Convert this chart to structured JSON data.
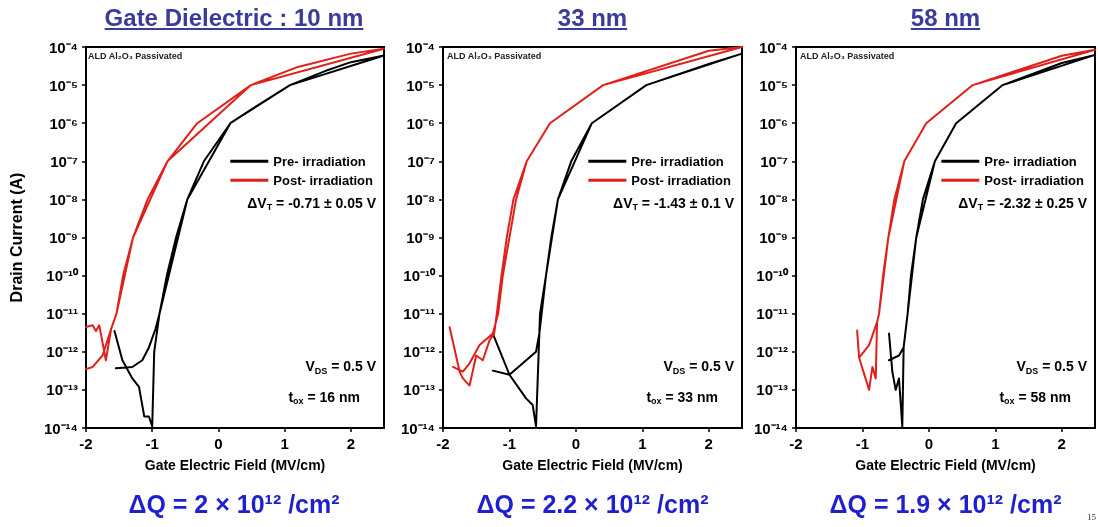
{
  "chart_data": [
    {
      "type": "line",
      "title": "Gate Dielectric : 10 nm",
      "xlabel": "Gate Electric Field (MV/cm)",
      "ylabel": "Drain Current (A)",
      "log": true,
      "grid": false,
      "legend": "right",
      "xlim": [
        -2,
        2.5
      ],
      "ylim": [
        1e-14,
        0.0001
      ],
      "xticks": [
        -2,
        -1,
        0,
        1,
        2
      ],
      "yticks": [
        {
          "value": 0.0001,
          "label": "10⁻⁴"
        },
        {
          "value": 1e-05,
          "label": "10⁻⁵"
        },
        {
          "value": 1e-06,
          "label": "10⁻⁶"
        },
        {
          "value": 1e-07,
          "label": "10⁻⁷"
        },
        {
          "value": 1e-08,
          "label": "10⁻⁸"
        },
        {
          "value": 1e-09,
          "label": "10⁻⁹"
        },
        {
          "value": 1e-10,
          "label": "10⁻¹⁰"
        },
        {
          "value": 1e-11,
          "label": "10⁻¹¹"
        },
        {
          "value": 1e-12,
          "label": "10⁻¹²"
        },
        {
          "value": 1e-13,
          "label": "10⁻¹³"
        },
        {
          "value": 1e-14,
          "label": "10⁻¹⁴"
        }
      ],
      "annotations": [
        "ALD Al₂O₃ Passivated",
        "ΔV$_{T}$ = -0.71 ± 0.05 V",
        "V$_{DS}$ = 0.5 V",
        "t$_{ox}$ = 16 nm",
        "ΔQ = 2 × 10¹² /cm²"
      ],
      "series": [
        {
          "name": "Pre- irradiation",
          "color": "#000000",
          "x": [
            -1.55,
            -1.3,
            -1.15,
            -1.05,
            -0.95,
            -0.89,
            -0.78,
            -0.64,
            -0.47,
            -0.22,
            0.18,
            0.6,
            1.08,
            1.6,
            2,
            2.5,
            1.08,
            0.18,
            -0.47,
            -0.89,
            -0.97,
            -1.0,
            -1.05,
            -1.12,
            -1.2,
            -1.3,
            -1.45,
            -1.57
          ],
          "values": [
            3.7e-13,
            4e-13,
            6e-13,
            1.3e-12,
            4e-12,
            1e-11,
            1e-10,
            1e-09,
            1e-08,
            1e-07,
            1e-06,
            3e-06,
            1e-05,
            2.3e-05,
            4e-05,
            6e-05,
            1e-05,
            1e-06,
            1e-08,
            1e-11,
            1e-12,
            1.1e-14,
            2e-14,
            2e-14,
            1.2e-13,
            2e-13,
            6e-13,
            3.5e-12
          ]
        },
        {
          "name": "Post- irradiation",
          "color": "#e0201b",
          "x": [
            -2,
            -1.9,
            -1.75,
            -1.62,
            -1.54,
            -1.44,
            -1.29,
            -1.07,
            -0.77,
            -0.32,
            0.49,
            1.2,
            2,
            2.5,
            0.49,
            -0.77,
            -1.29,
            -1.54,
            -1.62,
            -1.7,
            -1.8,
            -1.85,
            -1.9,
            -2
          ],
          "values": [
            3.5e-13,
            4e-13,
            8e-13,
            4e-12,
            1e-11,
            1e-10,
            1e-09,
            1e-08,
            1e-07,
            1e-06,
            1e-05,
            3e-05,
            6.7e-05,
            9e-05,
            1e-05,
            1e-07,
            1e-09,
            1e-11,
            4e-12,
            6e-13,
            5e-12,
            3.5e-12,
            5e-12,
            4.5e-12
          ]
        }
      ]
    },
    {
      "type": "line",
      "title": "33 nm",
      "xlabel": "Gate Electric Field (MV/cm)",
      "log": true,
      "grid": false,
      "legend": "right",
      "xlim": [
        -2,
        2.5
      ],
      "ylim": [
        1e-14,
        0.0001
      ],
      "xticks": [
        -2,
        -1,
        0,
        1,
        2
      ],
      "yticks": [
        {
          "value": 0.0001,
          "label": "10⁻⁴"
        },
        {
          "value": 1e-05,
          "label": "10⁻⁵"
        },
        {
          "value": 1e-06,
          "label": "10⁻⁶"
        },
        {
          "value": 1e-07,
          "label": "10⁻⁷"
        },
        {
          "value": 1e-08,
          "label": "10⁻⁸"
        },
        {
          "value": 1e-09,
          "label": "10⁻⁹"
        },
        {
          "value": 1e-10,
          "label": "10⁻¹⁰"
        },
        {
          "value": 1e-11,
          "label": "10⁻¹¹"
        },
        {
          "value": 1e-12,
          "label": "10⁻¹²"
        },
        {
          "value": 1e-13,
          "label": "10⁻¹³"
        },
        {
          "value": 1e-14,
          "label": "10⁻¹⁴"
        }
      ],
      "annotations": [
        "ALD Al₂O₃ Passivated",
        "ΔV$_{T}$ = -1.43 ± 0.1 V",
        "V$_{DS}$ = 0.5 V",
        "t$_{ox}$ = 33 nm",
        "ΔQ = 2.2 × 10¹² /cm²"
      ],
      "series": [
        {
          "name": "Pre- irradiation",
          "color": "#000000",
          "x": [
            -1.25,
            -1.0,
            -0.8,
            -0.6,
            -0.55,
            -0.54,
            -0.45,
            -0.37,
            -0.27,
            -0.07,
            0.24,
            1.06,
            2,
            2.5,
            1.06,
            0.24,
            -0.27,
            -0.45,
            -0.55,
            -0.6,
            -0.65,
            -0.75,
            -0.8,
            -1.0,
            -1.25
          ],
          "values": [
            3.2e-13,
            2.5e-13,
            5e-13,
            1e-12,
            3e-12,
            1e-11,
            1e-10,
            1e-09,
            1e-08,
            1e-07,
            1e-06,
            1e-05,
            3.6e-05,
            6.7e-05,
            1e-05,
            1e-06,
            1e-08,
            1e-10,
            3e-12,
            1.1e-14,
            4e-14,
            6e-14,
            8e-14,
            2.5e-13,
            3e-12
          ]
        },
        {
          "name": "Post- irradiation",
          "color": "#e0201b",
          "x": [
            -1.9,
            -1.75,
            -1.7,
            -1.6,
            -1.5,
            -1.4,
            -1.3,
            -1.23,
            -1.19,
            -1.12,
            -1.04,
            -0.94,
            -0.74,
            -0.39,
            0.41,
            2,
            2.5,
            0.41,
            -0.39,
            -0.74,
            -0.9,
            -1.0,
            -1.1,
            -1.17,
            -1.25,
            -1.45,
            -1.6,
            -1.7,
            -1.85
          ],
          "values": [
            4.4e-12,
            3e-13,
            2e-13,
            1.3e-13,
            8e-13,
            6e-13,
            2e-12,
            3e-12,
            1e-11,
            1e-10,
            1e-09,
            1e-08,
            1e-07,
            1e-06,
            1e-05,
            8e-05,
            0.0001,
            1e-05,
            1e-06,
            1e-07,
            1e-08,
            1e-09,
            1e-10,
            1e-11,
            3e-12,
            1.5e-12,
            5e-13,
            3e-13,
            4e-13
          ]
        }
      ]
    },
    {
      "type": "line",
      "title": "58 nm",
      "xlabel": "Gate Electric Field (MV/cm)",
      "log": true,
      "grid": false,
      "legend": "right",
      "xlim": [
        -2,
        2.5
      ],
      "ylim": [
        1e-14,
        0.0001
      ],
      "xticks": [
        -2,
        -1,
        0,
        1,
        2
      ],
      "yticks": [
        {
          "value": 0.0001,
          "label": "10⁻⁴"
        },
        {
          "value": 1e-05,
          "label": "10⁻⁵"
        },
        {
          "value": 1e-06,
          "label": "10⁻⁶"
        },
        {
          "value": 1e-07,
          "label": "10⁻⁷"
        },
        {
          "value": 1e-08,
          "label": "10⁻⁸"
        },
        {
          "value": 1e-09,
          "label": "10⁻⁹"
        },
        {
          "value": 1e-10,
          "label": "10⁻¹⁰"
        },
        {
          "value": 1e-11,
          "label": "10⁻¹¹"
        },
        {
          "value": 1e-12,
          "label": "10⁻¹²"
        },
        {
          "value": 1e-13,
          "label": "10⁻¹³"
        },
        {
          "value": 1e-14,
          "label": "10⁻¹⁴"
        }
      ],
      "annotations": [
        "ALD Al₂O₃ Passivated",
        "ΔV$_{T}$ = -2.32 ± 0.25 V",
        "V$_{DS}$ = 0.5 V",
        "t$_{ox}$ = 58 nm",
        "ΔQ = 1.9 × 10¹² /cm²",
        "15"
      ],
      "series": [
        {
          "name": "Pre- irradiation",
          "color": "#000000",
          "x": [
            -0.6,
            -0.45,
            -0.38,
            -0.32,
            -0.27,
            -0.19,
            -0.09,
            0.09,
            0.41,
            1.11,
            2,
            2.5,
            1.11,
            0.41,
            0.09,
            -0.19,
            -0.32,
            -0.38,
            -0.4,
            -0.45,
            -0.5,
            -0.55,
            -0.6
          ],
          "values": [
            6e-13,
            8e-13,
            1.3e-12,
            1e-11,
            1e-10,
            1e-09,
            1e-08,
            1e-07,
            1e-06,
            1e-05,
            3.8e-05,
            6.2e-05,
            1e-05,
            1e-06,
            1e-07,
            1e-09,
            1e-11,
            1.3e-12,
            1.1e-14,
            2e-13,
            1e-13,
            3e-13,
            3e-12
          ]
        },
        {
          "name": "Post- irradiation",
          "color": "#e0201b",
          "x": [
            -1.08,
            -1.05,
            -0.9,
            -0.85,
            -0.8,
            -0.78,
            -0.75,
            -0.69,
            -0.61,
            -0.52,
            -0.37,
            -0.04,
            0.66,
            2,
            2.5,
            0.66,
            -0.04,
            -0.37,
            -0.61,
            -0.75,
            -0.78,
            -0.9,
            -1.05
          ],
          "values": [
            3.6e-12,
            7e-13,
            1e-13,
            4e-13,
            2e-13,
            6e-12,
            1e-11,
            1e-10,
            1e-09,
            1e-08,
            1e-07,
            1e-06,
            1e-05,
            5.9e-05,
            8.5e-05,
            1e-05,
            1e-06,
            1e-07,
            1e-09,
            1e-11,
            6e-12,
            1.5e-12,
            7e-13
          ]
        }
      ]
    }
  ]
}
